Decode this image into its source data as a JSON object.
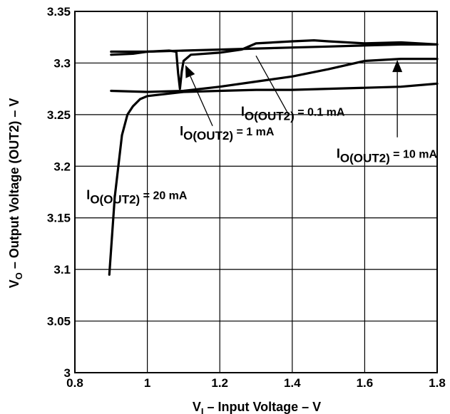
{
  "chart_data": {
    "type": "line",
    "title": "",
    "xlabel": {
      "main": "V",
      "sub": "I",
      "rest": " – Input Voltage – V"
    },
    "ylabel": {
      "main": "V",
      "sub": "O",
      "rest": " – Output Voltage (OUT2) – V"
    },
    "xlim": [
      0.8,
      1.8
    ],
    "ylim": [
      3.0,
      3.35
    ],
    "xticks": [
      "0.8",
      "1",
      "1.2",
      "1.4",
      "1.6",
      "1.8"
    ],
    "yticks": [
      "3",
      "3.05",
      "3.1",
      "3.15",
      "3.2",
      "3.25",
      "3.3",
      "3.35"
    ],
    "grid": true,
    "series": [
      {
        "name": "IO(OUT2) = 0.1 mA",
        "x": [
          0.9,
          1.0,
          1.1,
          1.2,
          1.3,
          1.4,
          1.5,
          1.6,
          1.7,
          1.8
        ],
        "y": [
          3.311,
          3.311,
          3.312,
          3.313,
          3.314,
          3.315,
          3.316,
          3.317,
          3.318,
          3.318
        ]
      },
      {
        "name": "IO(OUT2) = 1 mA",
        "x": [
          0.9,
          0.96,
          1.0,
          1.06,
          1.08,
          1.085,
          1.09,
          1.095,
          1.1,
          1.12,
          1.2,
          1.26,
          1.3,
          1.4,
          1.46,
          1.5,
          1.6,
          1.7,
          1.8
        ],
        "y": [
          3.308,
          3.309,
          3.311,
          3.312,
          3.311,
          3.29,
          3.275,
          3.292,
          3.302,
          3.308,
          3.31,
          3.313,
          3.319,
          3.321,
          3.322,
          3.321,
          3.319,
          3.32,
          3.318
        ]
      },
      {
        "name": "IO(OUT2) = 10 mA",
        "x": [
          0.9,
          1.0,
          1.1,
          1.2,
          1.3,
          1.4,
          1.5,
          1.6,
          1.7,
          1.8
        ],
        "y": [
          3.273,
          3.272,
          3.273,
          3.277,
          3.282,
          3.287,
          3.294,
          3.302,
          3.304,
          3.304
        ]
      },
      {
        "name": "IO(OUT2) = 20 mA",
        "x": [
          0.895,
          0.91,
          0.93,
          0.945,
          0.96,
          0.98,
          1.0,
          1.05,
          1.1,
          1.2,
          1.3,
          1.4,
          1.5,
          1.6,
          1.7,
          1.8
        ],
        "y": [
          3.095,
          3.17,
          3.23,
          3.25,
          3.258,
          3.265,
          3.268,
          3.27,
          3.272,
          3.273,
          3.274,
          3.274,
          3.275,
          3.276,
          3.277,
          3.28
        ]
      }
    ],
    "annotations": [
      {
        "main": "I",
        "sub": "O(OUT2)",
        "value": " = 0.1 mA",
        "x": 1.545,
        "y": 3.249,
        "from": [
          1.39,
          3.25
        ],
        "to": [
          1.3,
          3.307
        ],
        "head": "none"
      },
      {
        "main": "I",
        "sub": "O(OUT2)",
        "value": " = 1 mA",
        "x": 1.35,
        "y": 3.23,
        "from": [
          1.18,
          3.239
        ],
        "to": [
          1.105,
          3.298
        ],
        "head": "arrow"
      },
      {
        "main": "I",
        "sub": "O(OUT2)",
        "value": " = 10 mA",
        "x": 1.8,
        "y": 3.208,
        "from": [
          1.69,
          3.228
        ],
        "to": [
          1.69,
          3.303
        ],
        "head": "arrow"
      },
      {
        "main": "I",
        "sub": "O(OUT2)",
        "value": " = 20 mA",
        "x": 1.11,
        "y": 3.168,
        "from": null,
        "to": null,
        "head": "none"
      }
    ]
  }
}
